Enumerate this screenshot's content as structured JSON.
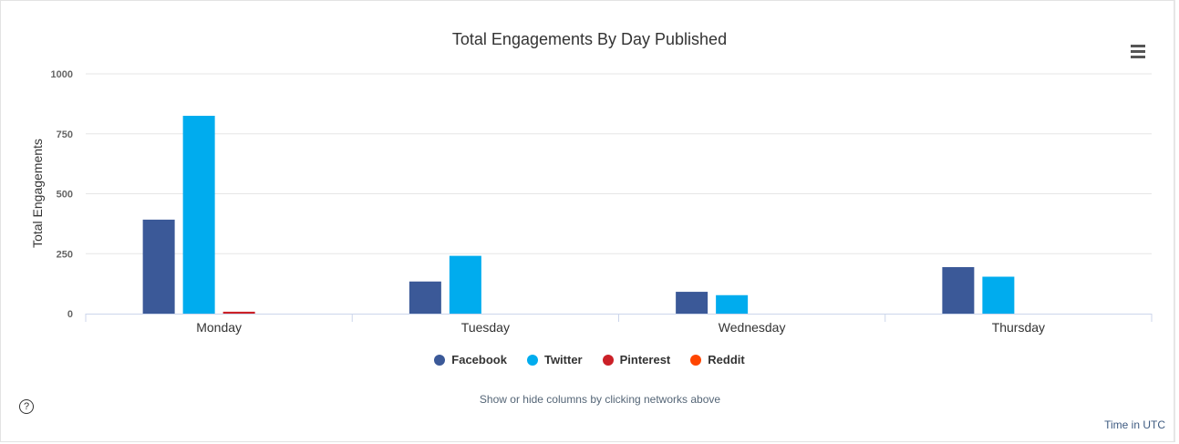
{
  "chart_data": {
    "type": "bar",
    "title": "Total Engagements By Day Published",
    "ylabel": "Total Engagements",
    "xlabel": "",
    "categories": [
      "Monday",
      "Tuesday",
      "Wednesday",
      "Thursday"
    ],
    "ylim": [
      0,
      1000
    ],
    "yticks": [
      "0",
      "250",
      "500",
      "750",
      "1000"
    ],
    "series": [
      {
        "name": "Facebook",
        "color": "#3b5998",
        "values": [
          392,
          134,
          91,
          194
        ]
      },
      {
        "name": "Twitter",
        "color": "#00acee",
        "values": [
          825,
          241,
          77,
          154
        ]
      },
      {
        "name": "Pinterest",
        "color": "#cb2027",
        "values": [
          8,
          0,
          0,
          0
        ]
      },
      {
        "name": "Reddit",
        "color": "#ff4500",
        "values": [
          0,
          0,
          0,
          0
        ]
      }
    ],
    "grid": true,
    "legend_position": "bottom-center"
  },
  "ui": {
    "help_glyph": "?",
    "hint_text": "Show or hide columns by clicking networks above",
    "timezone_text": "Time in UTC",
    "menu_icon": "hamburger-menu-icon",
    "help_icon": "question-circle-icon"
  }
}
